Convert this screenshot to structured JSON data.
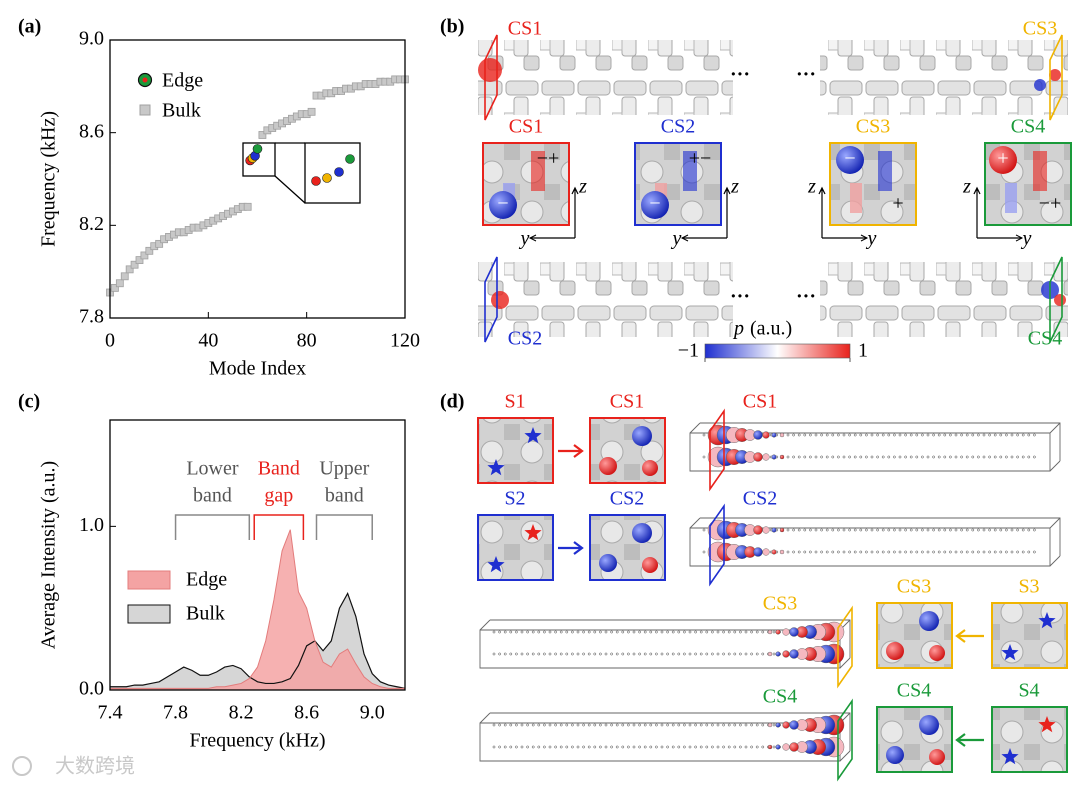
{
  "chart_data": [
    {
      "type": "scatter",
      "panel": "(a)",
      "xlabel": "Mode Index",
      "ylabel": "Frequency (kHz)",
      "xlim": [
        0,
        120
      ],
      "xticks": [
        0,
        40,
        80,
        120
      ],
      "ylim": [
        7.8,
        9
      ],
      "yticks": [
        7.8,
        8.2,
        8.6,
        {
          "value": 9,
          "label": "9.0"
        }
      ],
      "legend": "upper left",
      "series": [
        {
          "name": "Edge",
          "color": "#1a9a3a",
          "colors": [
            "#e8221c",
            "#f0b400",
            "#1f2fd0",
            "#1a9a3a"
          ],
          "x": [
            57,
            58,
            59,
            60
          ],
          "values": [
            8.48,
            8.49,
            8.5,
            8.53
          ]
        },
        {
          "name": "Bulk",
          "color": "#c8c8c8",
          "x": [
            0,
            2,
            4,
            6,
            8,
            10,
            12,
            14,
            16,
            18,
            20,
            22,
            24,
            26,
            28,
            30,
            32,
            34,
            36,
            38,
            40,
            42,
            44,
            46,
            48,
            50,
            52,
            54,
            56,
            62,
            64,
            66,
            68,
            70,
            72,
            74,
            76,
            78,
            80,
            82,
            84,
            86,
            88,
            90,
            92,
            94,
            96,
            98,
            100,
            102,
            104,
            106,
            108,
            110,
            112,
            114,
            116,
            118,
            120
          ],
          "values": [
            7.91,
            7.93,
            7.95,
            7.98,
            8.01,
            8.03,
            8.05,
            8.07,
            8.09,
            8.11,
            8.12,
            8.14,
            8.15,
            8.16,
            8.17,
            8.17,
            8.18,
            8.19,
            8.19,
            8.2,
            8.21,
            8.22,
            8.23,
            8.24,
            8.25,
            8.26,
            8.27,
            8.28,
            8.28,
            8.59,
            8.61,
            8.62,
            8.63,
            8.64,
            8.65,
            8.66,
            8.67,
            8.68,
            8.68,
            8.69,
            8.76,
            8.76,
            8.77,
            8.77,
            8.78,
            8.78,
            8.79,
            8.79,
            8.8,
            8.8,
            8.81,
            8.81,
            8.81,
            8.82,
            8.82,
            8.82,
            8.83,
            8.83,
            8.83
          ]
        }
      ]
    },
    {
      "type": "area",
      "panel": "(c)",
      "xlabel": "Frequency (kHz)",
      "ylabel": "Average Intensity (a.u.)",
      "xlim": [
        7.4,
        9.2
      ],
      "xticks": [
        7.4,
        7.8,
        8.2,
        8.6,
        {
          "value": 9,
          "label": "9.0"
        }
      ],
      "ylim": [
        0,
        1.65
      ],
      "yticks": [
        {
          "value": 0,
          "label": "0.0"
        },
        {
          "value": 1,
          "label": "1.0"
        }
      ],
      "legend": "center left",
      "x": [
        7.4,
        7.45,
        7.5,
        7.55,
        7.6,
        7.65,
        7.7,
        7.75,
        7.8,
        7.85,
        7.9,
        7.95,
        8.0,
        8.05,
        8.1,
        8.15,
        8.2,
        8.25,
        8.3,
        8.35,
        8.4,
        8.45,
        8.5,
        8.55,
        8.6,
        8.65,
        8.7,
        8.75,
        8.8,
        8.85,
        8.9,
        8.95,
        9.0,
        9.05,
        9.1,
        9.15,
        9.2
      ],
      "series": [
        {
          "name": "Edge",
          "color": "#f4a3a3",
          "values": [
            0.01,
            0.01,
            0.01,
            0.01,
            0.01,
            0.01,
            0.01,
            0.01,
            0.01,
            0.01,
            0.01,
            0.01,
            0.01,
            0.02,
            0.02,
            0.03,
            0.04,
            0.07,
            0.14,
            0.3,
            0.55,
            0.85,
            0.98,
            0.6,
            0.5,
            0.3,
            0.17,
            0.14,
            0.22,
            0.25,
            0.16,
            0.08,
            0.04,
            0.02,
            0.01,
            0.01,
            0.01
          ]
        },
        {
          "name": "Bulk",
          "color": "#d6d6d6",
          "values": [
            0.02,
            0.02,
            0.02,
            0.03,
            0.03,
            0.04,
            0.05,
            0.08,
            0.11,
            0.14,
            0.12,
            0.09,
            0.09,
            0.11,
            0.14,
            0.15,
            0.13,
            0.08,
            0.05,
            0.04,
            0.04,
            0.05,
            0.07,
            0.15,
            0.27,
            0.3,
            0.24,
            0.3,
            0.5,
            0.59,
            0.45,
            0.22,
            0.1,
            0.05,
            0.03,
            0.02,
            0.01
          ]
        }
      ],
      "annotations": [
        {
          "lines": [
            "Lower",
            "band"
          ],
          "color": "#555555",
          "range": [
            7.8,
            8.25
          ]
        },
        {
          "lines": [
            "Band",
            "gap"
          ],
          "color": "#e8221c",
          "range": [
            8.28,
            8.58
          ]
        },
        {
          "lines": [
            "Upper",
            "band"
          ],
          "color": "#555555",
          "range": [
            8.66,
            9.0
          ]
        }
      ]
    }
  ],
  "panel_b": {
    "label": "(b)",
    "chain_labels": [
      "CS1",
      "CS3",
      "CS2",
      "CS4"
    ],
    "ellipsis": "···",
    "insets": [
      {
        "title": "CS1",
        "color": "#e8221c",
        "h": "y",
        "v": "z",
        "signs": [
          "−+",
          "−"
        ]
      },
      {
        "title": "CS2",
        "color": "#1f2fd0",
        "h": "y",
        "v": "z",
        "signs": [
          "+−",
          "−"
        ]
      },
      {
        "title": "CS3",
        "color": "#f0b400",
        "h": "y",
        "v": "z",
        "signs": [
          "−",
          "+"
        ]
      },
      {
        "title": "CS4",
        "color": "#1a9a3a",
        "h": "y",
        "v": "z",
        "signs": [
          "+",
          "−+"
        ]
      }
    ],
    "colorbar": {
      "symbol": "p",
      "unit": "(a.u.)",
      "ticks": [
        {
          "value": -1,
          "label": "−1"
        },
        1
      ],
      "range": [
        -1,
        1
      ]
    }
  },
  "panel_d": {
    "label": "(d)",
    "pairs": [
      {
        "source": "S1",
        "target": "CS1",
        "color": "#e8221c"
      },
      {
        "source": "S2",
        "target": "CS2",
        "color": "#1f2fd0"
      },
      {
        "source": "S3",
        "target": "CS3",
        "color": "#f0b400"
      },
      {
        "source": "S4",
        "target": "CS4",
        "color": "#1a9a3a"
      }
    ],
    "tube_labels": [
      "CS1",
      "CS2",
      "CS3",
      "CS4"
    ]
  },
  "watermark": "大数跨境"
}
